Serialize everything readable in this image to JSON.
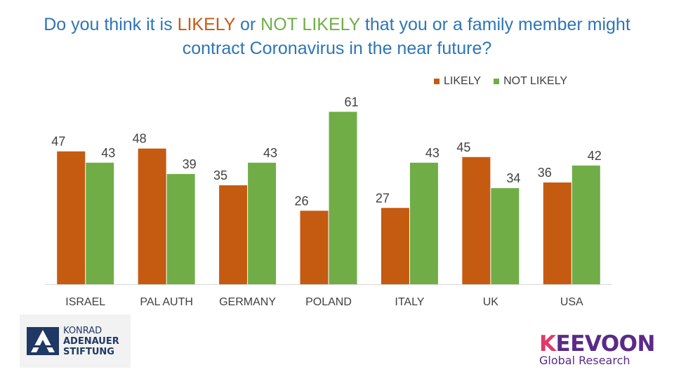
{
  "title": {
    "part1": "Do you think it is ",
    "likely": "LIKELY",
    "part2": " or ",
    "not_likely": "NOT LIKELY",
    "part3": " that you or a family member might contract Coronavirus in the near future?"
  },
  "legend": {
    "likely": "LIKELY",
    "not_likely": "NOT LIKELY"
  },
  "colors": {
    "likely": "#c55a11",
    "not_likely": "#70ad47",
    "title": "#2e75b6"
  },
  "chart_data": {
    "type": "bar",
    "categories": [
      "ISRAEL",
      "PAL AUTH",
      "GERMANY",
      "POLAND",
      "ITALY",
      "UK",
      "USA"
    ],
    "series": [
      {
        "name": "LIKELY",
        "values": [
          47,
          48,
          35,
          26,
          27,
          45,
          36
        ]
      },
      {
        "name": "NOT LIKELY",
        "values": [
          43,
          39,
          43,
          61,
          43,
          34,
          42
        ]
      }
    ],
    "ylim": [
      0,
      72
    ],
    "grid": false,
    "legend_position": "top-right",
    "data_labels": true
  },
  "logos": {
    "kas": {
      "line1": "KONRAD",
      "line2": "ADENAUER",
      "line3": "STIFTUNG"
    },
    "keevoon": {
      "name_k": "K",
      "name_rest": "EEVOON",
      "sub": "Global Research"
    }
  }
}
